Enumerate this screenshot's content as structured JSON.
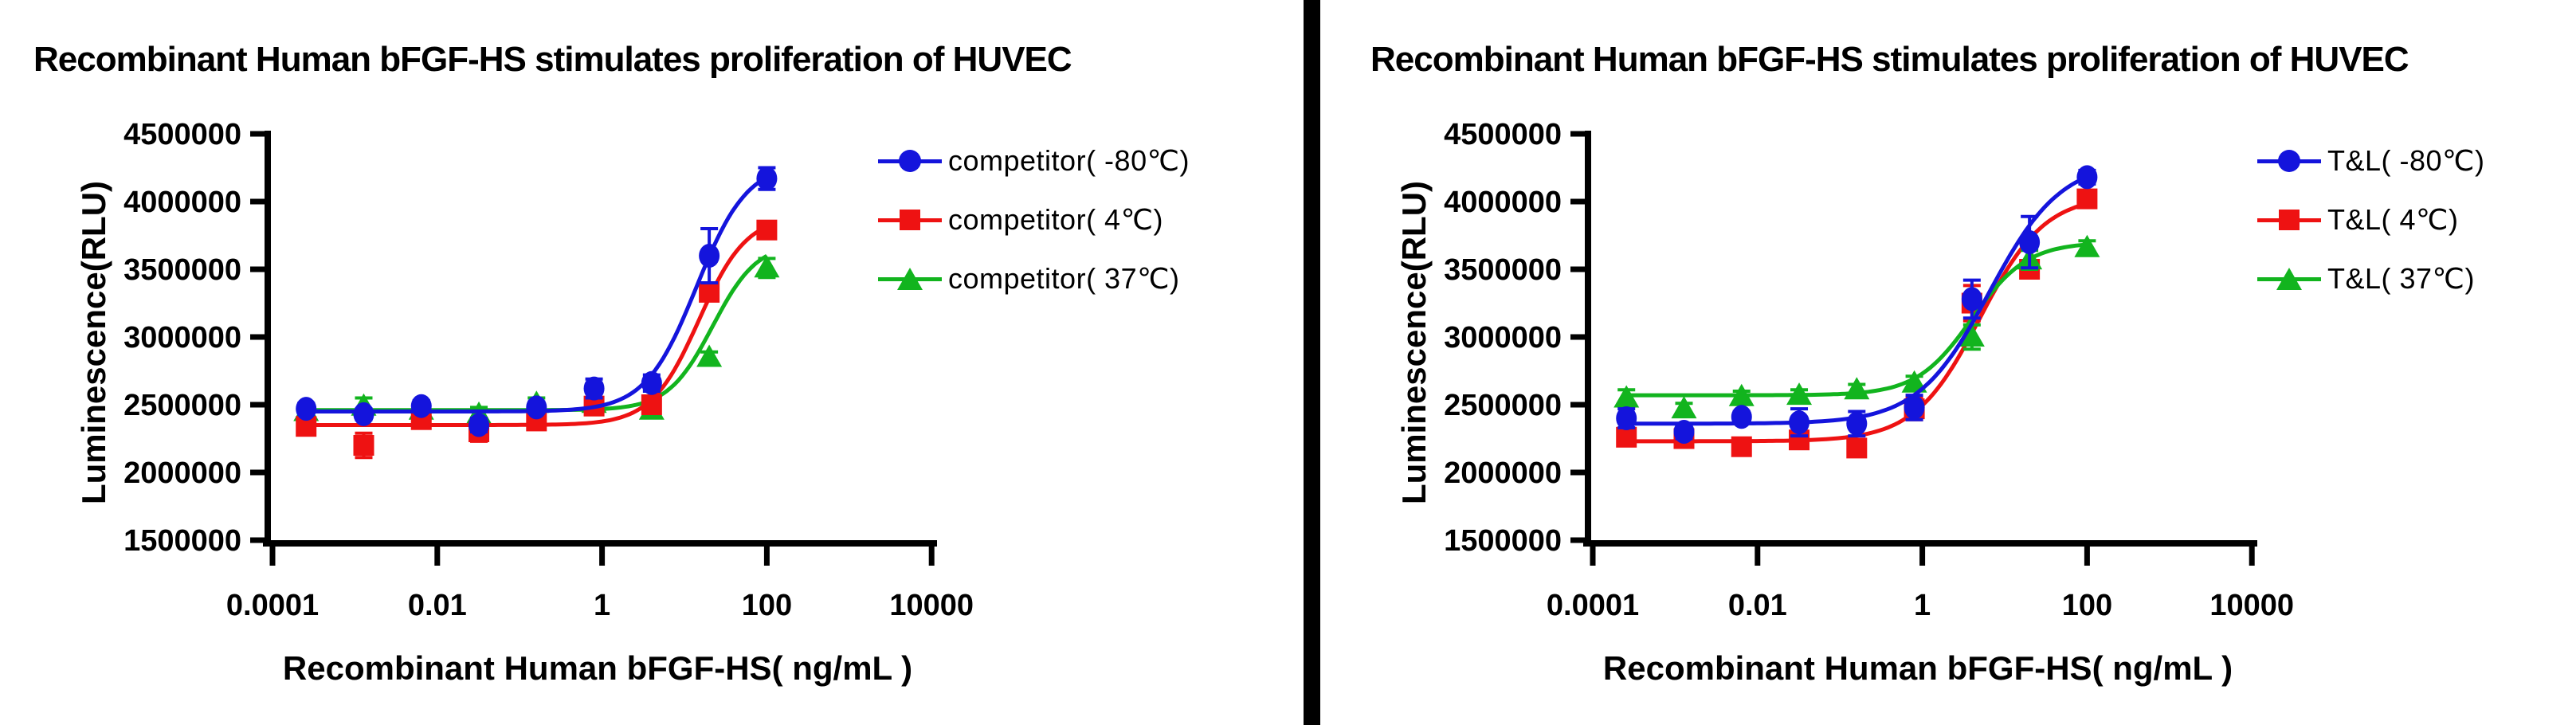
{
  "chart_data": [
    {
      "type": "line",
      "title": "Recombinant Human bFGF-HS stimulates proliferation of HUVEC",
      "xlabel": "Recombinant Human bFGF-HS( ng/mL )",
      "ylabel": "Luminescence(RLU)",
      "xscale": "log",
      "xlim": [
        0.0001,
        10000
      ],
      "ylim": [
        1500000,
        4500000
      ],
      "xticks": [
        0.0001,
        0.01,
        1,
        100,
        10000
      ],
      "xtick_labels": [
        "0.0001",
        "0.01",
        "1",
        "100",
        "10000"
      ],
      "yticks": [
        1500000,
        2000000,
        2500000,
        3000000,
        3500000,
        4000000,
        4500000
      ],
      "ytick_labels": [
        "1500000",
        "2000000",
        "2500000",
        "3000000",
        "3500000",
        "4000000",
        "4500000"
      ],
      "grid": false,
      "legend_position": "right",
      "x": [
        0.000256,
        0.00128,
        0.0064,
        0.032,
        0.16,
        0.8,
        4,
        20,
        100
      ],
      "curve_range": [
        0.000256,
        100
      ],
      "draw_order": [
        2,
        1,
        0
      ],
      "series": [
        {
          "id": "competitor-minus80",
          "name": "competitor( -80℃)",
          "color": "#1414DC",
          "marker": "circle",
          "values": [
            2470000,
            2430000,
            2490000,
            2350000,
            2480000,
            2620000,
            2660000,
            3600000,
            4170000
          ],
          "errors": [
            40000,
            40000,
            40000,
            50000,
            40000,
            70000,
            60000,
            200000,
            80000
          ],
          "fit": {
            "bottom": 2450000,
            "top": 4290000,
            "ec50": 14,
            "hill": 1.4
          }
        },
        {
          "id": "competitor-4",
          "name": "competitor( 4℃)",
          "color": "#EE1212",
          "marker": "square",
          "values": [
            2340000,
            2200000,
            2390000,
            2300000,
            2380000,
            2490000,
            2500000,
            3330000,
            3790000
          ],
          "errors": [
            60000,
            90000,
            40000,
            70000,
            60000,
            40000,
            60000,
            50000,
            60000
          ],
          "fit": {
            "bottom": 2350000,
            "top": 3900000,
            "ec50": 15,
            "hill": 1.5
          }
        },
        {
          "id": "competitor-37",
          "name": "competitor( 37℃)",
          "color": "#12B41E",
          "marker": "triangle",
          "values": [
            2450000,
            2490000,
            2460000,
            2430000,
            2510000,
            2510000,
            2460000,
            2850000,
            3510000
          ],
          "errors": [
            50000,
            60000,
            40000,
            50000,
            40000,
            40000,
            40000,
            40000,
            70000
          ],
          "fit": {
            "bottom": 2460000,
            "top": 3700000,
            "ec50": 22,
            "hill": 1.6
          }
        }
      ]
    },
    {
      "type": "line",
      "title": "Recombinant Human bFGF-HS stimulates proliferation of HUVEC",
      "xlabel": "Recombinant Human bFGF-HS( ng/mL )",
      "ylabel": "Luminescence(RLU)",
      "xscale": "log",
      "xlim": [
        0.0001,
        10000
      ],
      "ylim": [
        1500000,
        4500000
      ],
      "xticks": [
        0.0001,
        0.01,
        1,
        100,
        10000
      ],
      "xtick_labels": [
        "0.0001",
        "0.01",
        "1",
        "100",
        "10000"
      ],
      "yticks": [
        1500000,
        2000000,
        2500000,
        3000000,
        3500000,
        4000000,
        4500000
      ],
      "ytick_labels": [
        "1500000",
        "2000000",
        "2500000",
        "3000000",
        "3500000",
        "4000000",
        "4500000"
      ],
      "grid": false,
      "legend_position": "right",
      "x": [
        0.000256,
        0.00128,
        0.0064,
        0.032,
        0.16,
        0.8,
        4,
        20,
        100
      ],
      "curve_range": [
        0.000256,
        100
      ],
      "draw_order": [
        1,
        2,
        0
      ],
      "series": [
        {
          "id": "tl-minus80",
          "name": "T&L( -80℃)",
          "color": "#1414DC",
          "marker": "circle",
          "values": [
            2400000,
            2300000,
            2410000,
            2370000,
            2360000,
            2480000,
            3280000,
            3700000,
            4180000
          ],
          "errors": [
            70000,
            50000,
            40000,
            100000,
            90000,
            90000,
            140000,
            190000,
            50000
          ],
          "fit": {
            "bottom": 2360000,
            "top": 4300000,
            "ec50": 6.5,
            "hill": 1.0
          }
        },
        {
          "id": "tl-4",
          "name": "T&L( 4℃)",
          "color": "#EE1212",
          "marker": "square",
          "values": [
            2260000,
            2250000,
            2190000,
            2240000,
            2180000,
            2470000,
            3250000,
            3500000,
            4020000
          ],
          "errors": [
            50000,
            40000,
            40000,
            60000,
            50000,
            80000,
            130000,
            60000,
            50000
          ],
          "fit": {
            "bottom": 2230000,
            "top": 4050000,
            "ec50": 5,
            "hill": 1.1
          }
        },
        {
          "id": "tl-37",
          "name": "T&L( 37℃)",
          "color": "#12B41E",
          "marker": "triangle",
          "values": [
            2550000,
            2470000,
            2560000,
            2570000,
            2610000,
            2660000,
            3000000,
            3570000,
            3660000
          ],
          "errors": [
            60000,
            40000,
            40000,
            40000,
            40000,
            50000,
            90000,
            70000,
            50000
          ],
          "fit": {
            "bottom": 2570000,
            "top": 3700000,
            "ec50": 4,
            "hill": 1.3
          }
        }
      ]
    }
  ]
}
